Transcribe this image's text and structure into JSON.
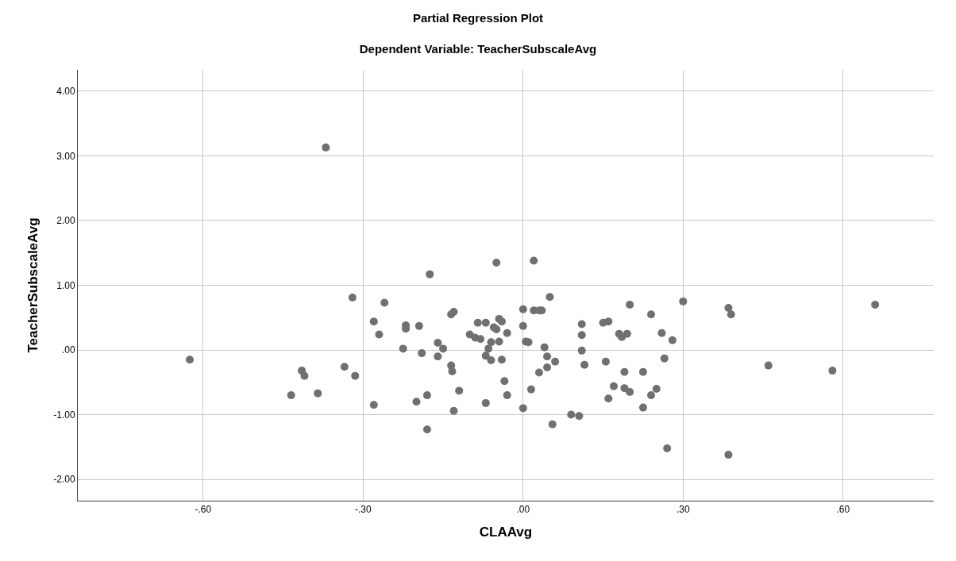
{
  "chart_data": {
    "type": "scatter",
    "title": "Partial Regression Plot",
    "subtitle": "Dependent Variable: TeacherSubscaleAvg",
    "xlabel": "CLAAvg",
    "ylabel": "TeacherSubscaleAvg",
    "xlim": [
      -0.835,
      0.77
    ],
    "ylim": [
      -2.33,
      4.33
    ],
    "xticks": [
      {
        "value": -0.6,
        "label": "-.60"
      },
      {
        "value": -0.3,
        "label": "-.30"
      },
      {
        "value": 0,
        "label": ".00"
      },
      {
        "value": 0.3,
        "label": ".30"
      },
      {
        "value": 0.6,
        "label": ".60"
      }
    ],
    "yticks": [
      {
        "value": -2,
        "label": "-2.00"
      },
      {
        "value": -1,
        "label": "-1.00"
      },
      {
        "value": 0,
        "label": ".00"
      },
      {
        "value": 1,
        "label": "1.00"
      },
      {
        "value": 2,
        "label": "2.00"
      },
      {
        "value": 3,
        "label": "3.00"
      },
      {
        "value": 4,
        "label": "4.00"
      }
    ],
    "grid": true,
    "marker": "circle",
    "series": [
      {
        "color": "#707070",
        "x": [
          -0.625,
          -0.435,
          -0.415,
          -0.41,
          -0.385,
          -0.335,
          -0.37,
          -0.32,
          -0.315,
          -0.28,
          -0.28,
          -0.27,
          -0.26,
          -0.225,
          -0.22,
          -0.22,
          -0.2,
          -0.195,
          -0.19,
          -0.18,
          -0.18,
          -0.175,
          -0.16,
          -0.16,
          -0.15,
          -0.135,
          -0.13,
          -0.135,
          -0.133,
          -0.13,
          -0.12,
          -0.1,
          -0.09,
          -0.085,
          -0.08,
          -0.07,
          -0.07,
          -0.07,
          -0.065,
          -0.06,
          -0.06,
          -0.055,
          -0.05,
          -0.05,
          -0.045,
          -0.045,
          -0.04,
          -0.04,
          -0.035,
          -0.03,
          -0.03,
          0.0,
          0.0,
          0.0,
          0.005,
          0.01,
          0.015,
          0.02,
          0.02,
          0.03,
          0.03,
          0.035,
          0.04,
          0.045,
          0.045,
          0.05,
          0.06,
          0.055,
          0.09,
          0.105,
          0.11,
          0.11,
          0.11,
          0.115,
          0.15,
          0.155,
          0.16,
          0.16,
          0.17,
          0.18,
          0.185,
          0.19,
          0.19,
          0.195,
          0.2,
          0.2,
          0.225,
          0.225,
          0.24,
          0.24,
          0.25,
          0.26,
          0.265,
          0.27,
          0.28,
          0.3,
          0.385,
          0.39,
          0.385,
          0.46,
          0.58,
          0.66
        ],
        "values": [
          -0.15,
          -0.7,
          -0.32,
          -0.4,
          -0.67,
          -0.26,
          3.13,
          0.81,
          -0.4,
          0.44,
          -0.85,
          0.24,
          0.73,
          0.02,
          0.38,
          0.33,
          -0.8,
          0.37,
          -0.05,
          -0.7,
          -1.23,
          1.17,
          0.11,
          -0.1,
          0.02,
          0.55,
          0.59,
          -0.24,
          -0.33,
          -0.94,
          -0.63,
          0.24,
          0.19,
          0.42,
          0.17,
          0.42,
          -0.09,
          -0.82,
          0.02,
          0.12,
          -0.16,
          0.35,
          0.32,
          1.35,
          0.48,
          0.13,
          0.44,
          -0.15,
          -0.48,
          0.26,
          -0.7,
          0.37,
          0.63,
          -0.9,
          0.13,
          0.12,
          -0.61,
          1.38,
          0.61,
          0.61,
          -0.35,
          0.61,
          0.04,
          -0.1,
          -0.27,
          0.82,
          -0.18,
          -1.15,
          -1.0,
          -1.02,
          -0.01,
          0.4,
          0.23,
          -0.23,
          0.42,
          -0.18,
          0.44,
          -0.75,
          -0.56,
          0.25,
          0.2,
          -0.34,
          -0.59,
          0.25,
          0.7,
          -0.65,
          -0.34,
          -0.89,
          -0.7,
          0.55,
          -0.6,
          0.26,
          -0.13,
          -1.52,
          0.15,
          0.75,
          0.65,
          0.55,
          -1.62,
          -0.24,
          -0.32,
          0.7
        ]
      }
    ]
  }
}
